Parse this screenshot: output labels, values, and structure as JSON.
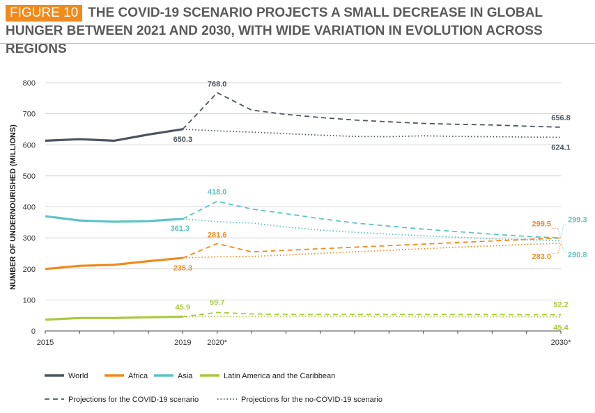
{
  "figure": {
    "badge": "FIGURE 10",
    "title": "THE COVID-19 SCENARIO PROJECTS A SMALL DECREASE IN GLOBAL HUNGER BETWEEN 2021 AND 2030, WITH WIDE VARIATION IN EVOLUTION ACROSS REGIONS"
  },
  "chart_data": {
    "type": "line",
    "ylabel": "NUMBER OF UNDERNOURISHED (MILLIONS)",
    "xlabel": "",
    "ylim": [
      0,
      800
    ],
    "yticks": [
      0,
      100,
      200,
      300,
      400,
      500,
      600,
      700,
      800
    ],
    "xlim": [
      2015,
      2030
    ],
    "xticks": [
      {
        "x": 2015,
        "label": "2015"
      },
      {
        "x": 2019,
        "label": "2019"
      },
      {
        "x": 2020,
        "label": "2020*"
      },
      {
        "x": 2030,
        "label": "2030*"
      }
    ],
    "grid": "horizontal",
    "legend_position": "bottom",
    "colors": {
      "world": "#4a5561",
      "africa": "#f08a1c",
      "asia": "#5cc4c4",
      "lac": "#a8c93c"
    },
    "series": [
      {
        "name": "World",
        "key": "world",
        "historical": {
          "x": [
            2015,
            2016,
            2017,
            2018,
            2019
          ],
          "y": [
            613,
            618,
            613,
            633,
            650.3
          ]
        },
        "covid": {
          "x": [
            2019,
            2020,
            2021,
            2022,
            2023,
            2024,
            2025,
            2026,
            2027,
            2028,
            2029,
            2030
          ],
          "y": [
            650.3,
            768.0,
            712,
            698,
            688,
            680,
            674,
            669,
            666,
            664,
            660,
            656.8
          ]
        },
        "no_covid": {
          "x": [
            2019,
            2020,
            2021,
            2022,
            2023,
            2024,
            2025,
            2026,
            2027,
            2028,
            2029,
            2030
          ],
          "y": [
            650.3,
            645,
            641,
            636,
            631,
            627,
            626,
            629,
            627,
            626,
            625,
            624.1
          ]
        }
      },
      {
        "name": "Africa",
        "key": "africa",
        "historical": {
          "x": [
            2015,
            2016,
            2017,
            2018,
            2019
          ],
          "y": [
            200,
            210,
            213,
            225,
            235.3
          ]
        },
        "covid": {
          "x": [
            2019,
            2020,
            2021,
            2022,
            2023,
            2024,
            2025,
            2026,
            2027,
            2028,
            2029,
            2030
          ],
          "y": [
            235.3,
            281.6,
            255,
            260,
            265,
            270,
            275,
            280,
            285,
            290,
            295,
            299.5
          ]
        },
        "no_covid": {
          "x": [
            2019,
            2020,
            2021,
            2022,
            2023,
            2024,
            2025,
            2026,
            2027,
            2028,
            2029,
            2030
          ],
          "y": [
            235.3,
            239,
            240,
            245,
            250,
            255,
            260,
            265,
            270,
            274,
            279,
            283.0
          ]
        }
      },
      {
        "name": "Asia",
        "key": "asia",
        "historical": {
          "x": [
            2015,
            2016,
            2017,
            2018,
            2019
          ],
          "y": [
            370,
            356,
            352,
            354,
            361.3
          ]
        },
        "covid": {
          "x": [
            2019,
            2020,
            2021,
            2022,
            2023,
            2024,
            2025,
            2026,
            2027,
            2028,
            2029,
            2030
          ],
          "y": [
            361.3,
            418.0,
            393,
            378,
            362,
            348,
            338,
            328,
            320,
            312,
            305,
            299.3
          ]
        },
        "no_covid": {
          "x": [
            2019,
            2020,
            2021,
            2022,
            2023,
            2024,
            2025,
            2026,
            2027,
            2028,
            2029,
            2030
          ],
          "y": [
            361.3,
            352,
            348,
            335,
            325,
            318,
            312,
            307,
            302,
            297,
            294,
            290.8
          ]
        }
      },
      {
        "name": "Latin America and the Caribbean",
        "key": "lac",
        "historical": {
          "x": [
            2015,
            2016,
            2017,
            2018,
            2019
          ],
          "y": [
            36,
            42,
            42,
            44,
            45.9
          ]
        },
        "covid": {
          "x": [
            2019,
            2020,
            2021,
            2022,
            2023,
            2024,
            2025,
            2026,
            2027,
            2028,
            2029,
            2030
          ],
          "y": [
            45.9,
            59.7,
            55,
            53,
            53,
            53,
            53,
            53,
            53,
            53,
            52.5,
            52.2
          ]
        },
        "no_covid": {
          "x": [
            2019,
            2020,
            2021,
            2022,
            2023,
            2024,
            2025,
            2026,
            2027,
            2028,
            2029,
            2030
          ],
          "y": [
            45.9,
            47,
            47,
            47,
            47,
            46.5,
            46.5,
            46,
            46,
            46,
            45.6,
            45.4
          ]
        }
      }
    ],
    "data_labels": [
      {
        "series": "world",
        "x": 2020,
        "y": 768.0,
        "text": "768.0"
      },
      {
        "series": "world",
        "x": 2019,
        "y": 650.3,
        "text": "650.3"
      },
      {
        "series": "world",
        "x": 2030,
        "y": 656.8,
        "text": "656.8"
      },
      {
        "series": "world",
        "x": 2030,
        "y": 624.1,
        "text": "624.1"
      },
      {
        "series": "asia",
        "x": 2020,
        "y": 418.0,
        "text": "418.0"
      },
      {
        "series": "asia",
        "x": 2019,
        "y": 361.3,
        "text": "361.3"
      },
      {
        "series": "asia",
        "x": 2030,
        "y": 299.3,
        "text": "299.3"
      },
      {
        "series": "asia",
        "x": 2030,
        "y": 290.8,
        "text": "290.8"
      },
      {
        "series": "africa",
        "x": 2020,
        "y": 281.6,
        "text": "281.6"
      },
      {
        "series": "africa",
        "x": 2019,
        "y": 235.3,
        "text": "235.3"
      },
      {
        "series": "africa",
        "x": 2030,
        "y": 299.5,
        "text": "299.5"
      },
      {
        "series": "africa",
        "x": 2030,
        "y": 283.0,
        "text": "283.0"
      },
      {
        "series": "lac",
        "x": 2019,
        "y": 45.9,
        "text": "45.9"
      },
      {
        "series": "lac",
        "x": 2020,
        "y": 59.7,
        "text": "59.7"
      },
      {
        "series": "lac",
        "x": 2030,
        "y": 52.2,
        "text": "52.2"
      },
      {
        "series": "lac",
        "x": 2030,
        "y": 45.4,
        "text": "45.4"
      }
    ],
    "legend": {
      "series": [
        {
          "key": "world",
          "label": "World"
        },
        {
          "key": "africa",
          "label": "Africa"
        },
        {
          "key": "asia",
          "label": "Asia"
        },
        {
          "key": "lac",
          "label": "Latin America and the Caribbean"
        }
      ],
      "scenarios": [
        {
          "style": "dashed",
          "label": "Projections for the COVID-19 scenario"
        },
        {
          "style": "dotted",
          "label": "Projections for the no-COVID-19 scenario"
        }
      ]
    }
  }
}
